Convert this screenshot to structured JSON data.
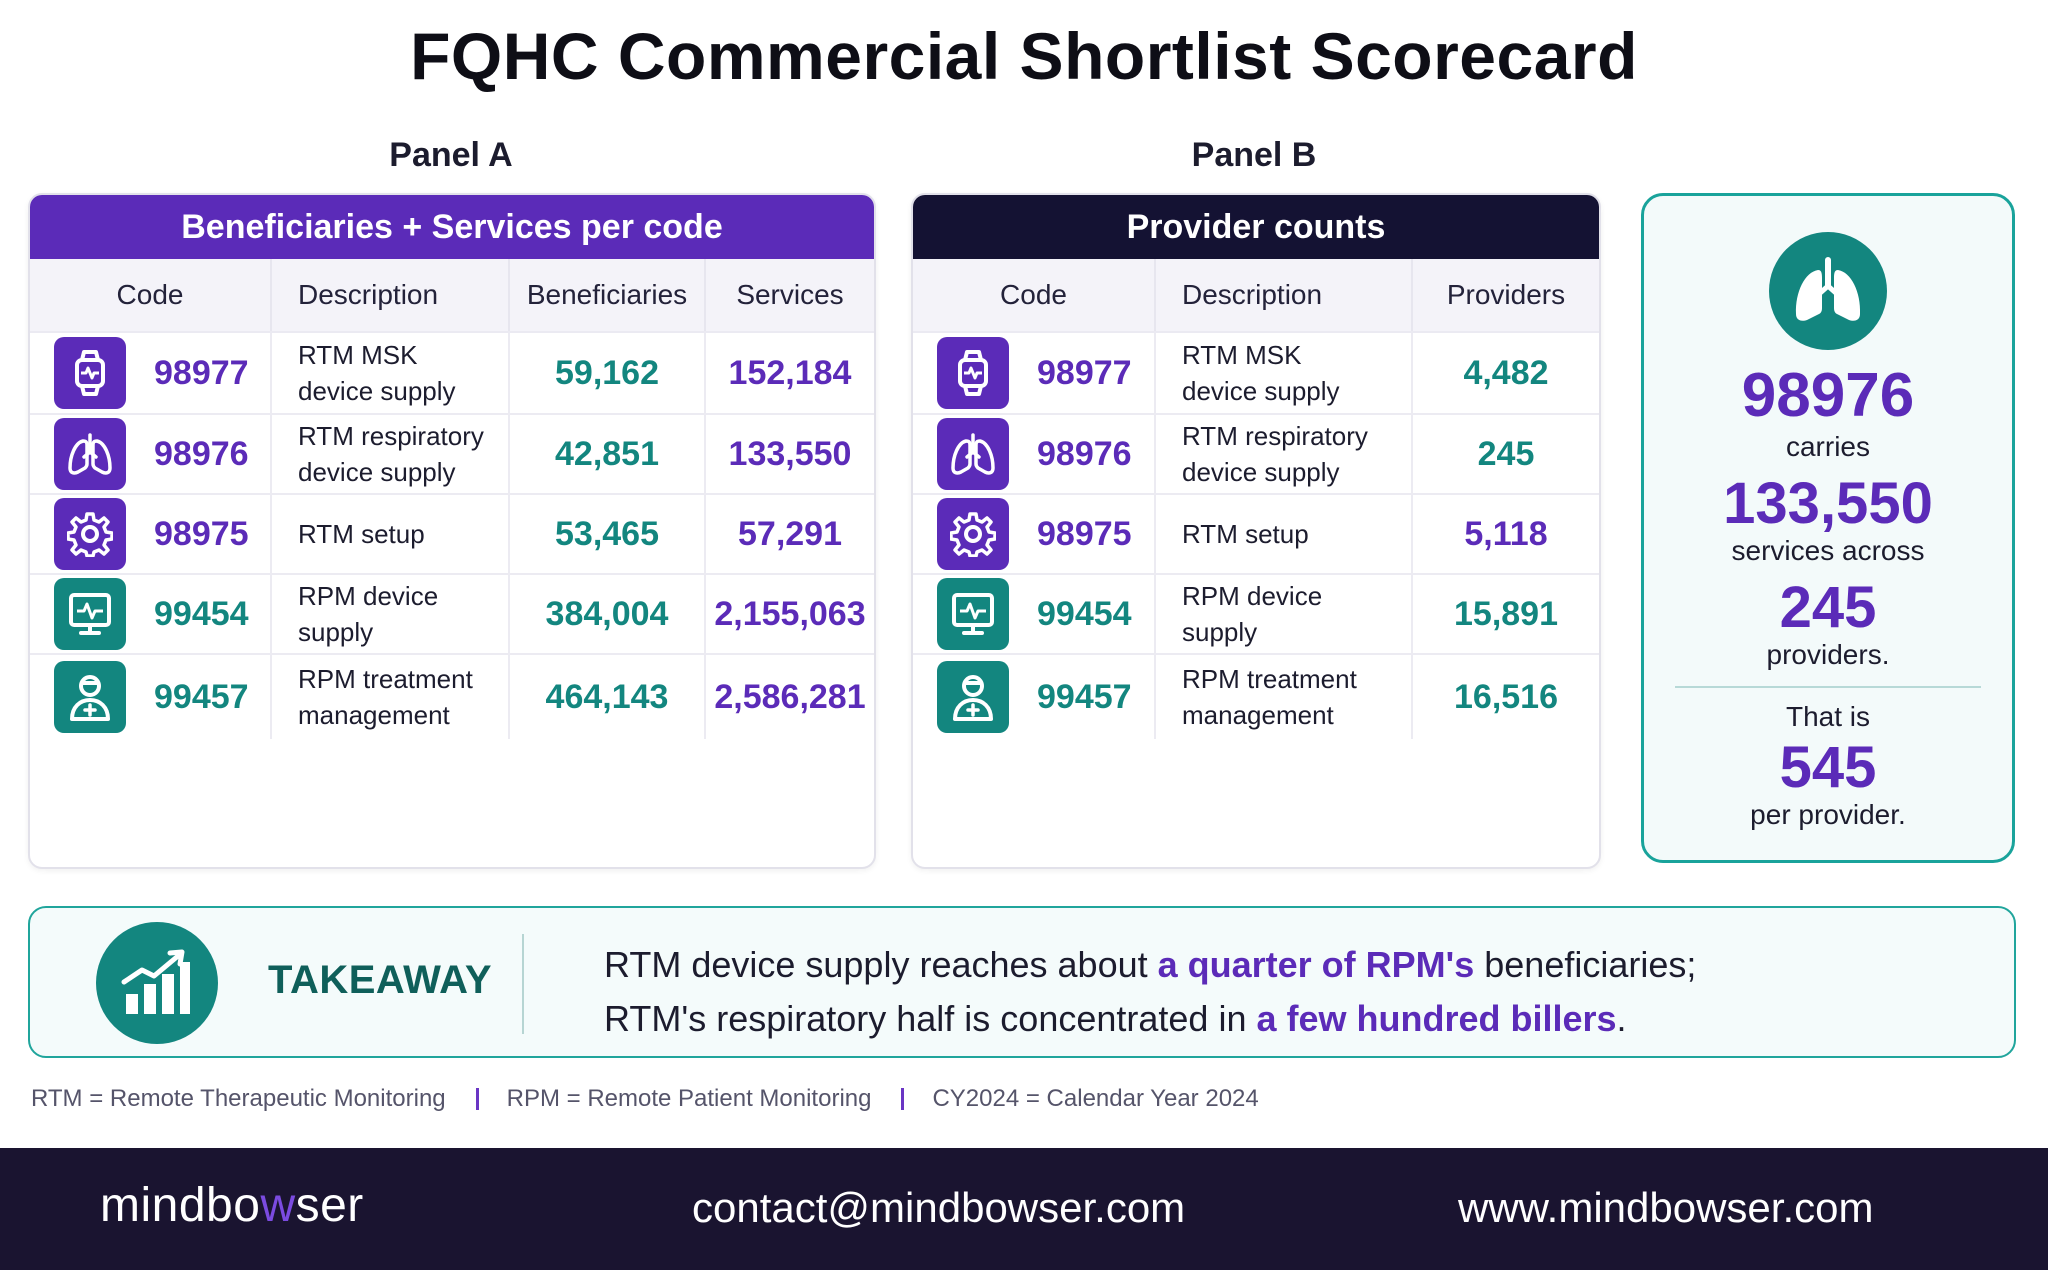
{
  "title": "FQHC Commercial Shortlist Scorecard",
  "panel_a": {
    "label": "Panel A",
    "header": "Beneficiaries + Services per code",
    "columns": [
      "Code",
      "Description",
      "Beneficiaries",
      "Services"
    ],
    "rows": [
      {
        "icon": "smartwatch-icon",
        "code": "98977",
        "description": "RTM MSK\ndevice supply",
        "beneficiaries": "59,162",
        "services": "152,184"
      },
      {
        "icon": "lungs-icon",
        "code": "98976",
        "description": "RTM respiratory\ndevice supply",
        "beneficiaries": "42,851",
        "services": "133,550"
      },
      {
        "icon": "gear-icon",
        "code": "98975",
        "description": "RTM setup",
        "beneficiaries": "53,465",
        "services": "57,291"
      },
      {
        "icon": "monitor-pulse-icon",
        "code": "99454",
        "description": "RPM device\nsupply",
        "beneficiaries": "384,004",
        "services": "2,155,063"
      },
      {
        "icon": "doctor-icon",
        "code": "99457",
        "description": "RPM treatment\nmanagement",
        "beneficiaries": "464,143",
        "services": "2,586,281"
      }
    ]
  },
  "panel_b": {
    "label": "Panel B",
    "header": "Provider counts",
    "columns": [
      "Code",
      "Description",
      "Providers"
    ],
    "rows": [
      {
        "icon": "smartwatch-icon",
        "code": "98977",
        "description": "RTM MSK\ndevice supply",
        "providers": "4,482"
      },
      {
        "icon": "lungs-icon",
        "code": "98976",
        "description": "RTM respiratory\ndevice supply",
        "providers": "245"
      },
      {
        "icon": "gear-icon",
        "code": "98975",
        "description": "RTM setup",
        "providers": "5,118"
      },
      {
        "icon": "monitor-pulse-icon",
        "code": "99454",
        "description": "RPM device\nsupply",
        "providers": "15,891"
      },
      {
        "icon": "doctor-icon",
        "code": "99457",
        "description": "RPM treatment\nmanagement",
        "providers": "16,516"
      }
    ]
  },
  "callout": {
    "icon": "lungs-icon",
    "code": "98976",
    "text1": "carries",
    "services": "133,550",
    "text2": "services across",
    "providers": "245",
    "text3": "providers.",
    "text4": "That is",
    "per_provider": "545",
    "text5": "per provider."
  },
  "takeaway": {
    "icon": "growth-chart-icon",
    "label": "TAKEAWAY",
    "line1_a": "RTM device supply reaches about ",
    "line1_hl": "a quarter of RPM's",
    "line1_b": " beneficiaries;",
    "line2_a": "RTM's respiratory half is concentrated in ",
    "line2_hl": "a few hundred billers",
    "line2_b": "."
  },
  "footnotes": [
    "RTM = Remote Therapeutic Monitoring",
    "RPM = Remote Patient Monitoring",
    "CY2024 = Calendar Year 2024"
  ],
  "footer": {
    "brand_a": "mindbo",
    "brand_w": "w",
    "brand_b": "ser",
    "email": "contact@mindbowser.com",
    "website": "www.mindbowser.com"
  },
  "colors": {
    "purple": "#5b2bb8",
    "teal": "#13867f",
    "navy": "#141233",
    "footer": "#1a1430"
  }
}
